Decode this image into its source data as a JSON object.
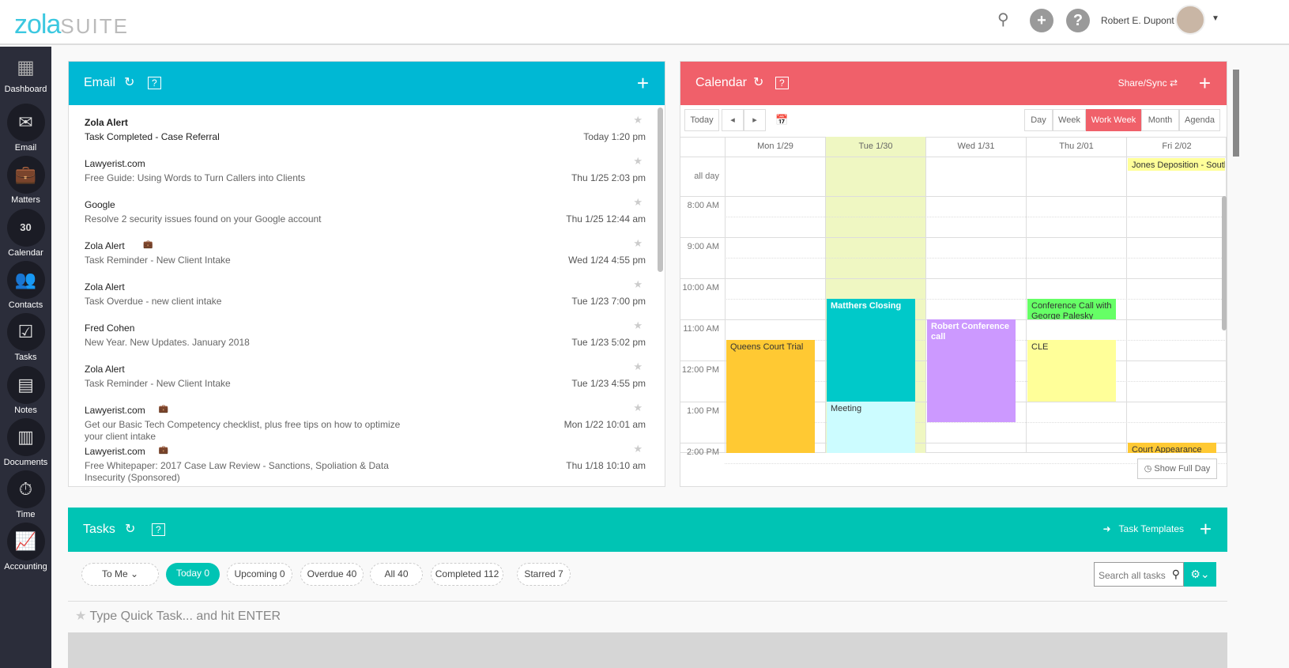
{
  "app": {
    "logo_main": "zola",
    "logo_sub": "SUITE",
    "user_name": "Robert E. Dupont"
  },
  "sidebar": {
    "items": [
      {
        "label": "Dashboard",
        "icon": "dashboard-icon"
      },
      {
        "label": "Email",
        "icon": "envelope-icon"
      },
      {
        "label": "Matters",
        "icon": "briefcase-icon"
      },
      {
        "label": "Calendar",
        "icon": "calendar-icon",
        "glyph": "30"
      },
      {
        "label": "Contacts",
        "icon": "contacts-icon"
      },
      {
        "label": "Tasks",
        "icon": "checkbox-icon"
      },
      {
        "label": "Notes",
        "icon": "notepad-icon"
      },
      {
        "label": "Documents",
        "icon": "document-icon"
      },
      {
        "label": "Time",
        "icon": "stopwatch-icon"
      },
      {
        "label": "Accounting",
        "icon": "chart-icon"
      }
    ]
  },
  "email": {
    "title": "Email",
    "colors": {
      "header": "#00b8d4"
    },
    "items": [
      {
        "from": "Zola Alert",
        "subject": "Task Completed - Case Referral",
        "date": "Today 1:20 pm",
        "unread": true
      },
      {
        "from": "Lawyerist.com",
        "subject": "Free Guide: Using Words to Turn Callers into Clients",
        "date": "Thu 1/25 2:03 pm"
      },
      {
        "from": "Google",
        "subject": "Resolve 2 security issues found on your Google account",
        "date": "Thu 1/25 12:44 am"
      },
      {
        "from": "Zola Alert",
        "subject": "Task Reminder - New Client Intake",
        "date": "Wed 1/24 4:55 pm",
        "badge": true
      },
      {
        "from": "Zola Alert",
        "subject": "Task Overdue - new client intake",
        "date": "Tue 1/23 7:00 pm"
      },
      {
        "from": "Fred Cohen",
        "subject": "New Year. New Updates. January 2018",
        "date": "Tue 1/23 5:02 pm"
      },
      {
        "from": "Zola Alert",
        "subject": "Task Reminder - New Client Intake",
        "date": "Tue 1/23 4:55 pm"
      },
      {
        "from": "Lawyerist.com",
        "subject": "Get our Basic Tech Competency checklist, plus free tips on how to optimize your client intake",
        "date": "Mon 1/22 10:01 am",
        "badge": true
      },
      {
        "from": "Lawyerist.com",
        "subject": "Free Whitepaper: 2017 Case Law Review - Sanctions, Spoliation & Data Insecurity (Sponsored)",
        "date": "Thu 1/18 10:10 am",
        "badge": true
      }
    ]
  },
  "calendar": {
    "title": "Calendar",
    "share": "Share/Sync",
    "colors": {
      "header": "#f0606a"
    },
    "nav": {
      "today": "Today",
      "prev": "◂",
      "next": "▸"
    },
    "views": [
      "Day",
      "Week",
      "Work Week",
      "Month",
      "Agenda"
    ],
    "active_view": "Work Week",
    "days": [
      "Mon 1/29",
      "Tue 1/30",
      "Wed 1/31",
      "Thu 2/01",
      "Fri 2/02"
    ],
    "allday_label": "all day",
    "hours": [
      "8:00 AM",
      "9:00 AM",
      "10:00 AM",
      "11:00 AM",
      "12:00 PM",
      "1:00 PM",
      "2:00 PM"
    ],
    "allday_events": [
      {
        "title": "Jones Deposition - Southe",
        "day": 4,
        "color": "#ffff99"
      }
    ],
    "events": [
      {
        "title": "Queens Court Trial",
        "day": 0,
        "start": 11.5,
        "end": 15,
        "color": "#ffc933",
        "text": "#333"
      },
      {
        "title": "Matthers Closing",
        "day": 1,
        "start": 10.5,
        "end": 13,
        "color": "#00c9c9",
        "text": "#fff"
      },
      {
        "title": "Meeting",
        "day": 1,
        "start": 13,
        "end": 15,
        "color": "#ccfcff",
        "text": "#333"
      },
      {
        "title": "Robert Conference call",
        "day": 2,
        "start": 11,
        "end": 13.5,
        "color": "#cc99ff",
        "text": "#fff"
      },
      {
        "title": "Conference Call with George Palesky",
        "day": 3,
        "start": 10.5,
        "end": 11,
        "color": "#66ff66",
        "text": "#333"
      },
      {
        "title": "CLE",
        "day": 3,
        "start": 11.5,
        "end": 13,
        "color": "#ffff99",
        "text": "#333"
      },
      {
        "title": "Court Appearance",
        "day": 4,
        "start": 14,
        "end": 15,
        "color": "#ffc933",
        "text": "#333"
      }
    ],
    "show_full_day": "Show Full Day"
  },
  "tasks": {
    "title": "Tasks",
    "templates": "Task Templates",
    "colors": {
      "header": "#00c4b4"
    },
    "filters": [
      "To Me ⌄",
      "Today 0",
      "Upcoming 0",
      "Overdue 40",
      "All 40",
      "Completed 112",
      "Starred 7"
    ],
    "active_filter": "Today 0",
    "search_placeholder": "Search all tasks",
    "quick_placeholder": "Type Quick Task... and hit ENTER"
  }
}
